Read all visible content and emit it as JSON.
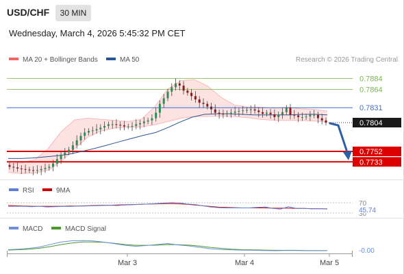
{
  "header": {
    "symbol": "USD/CHF",
    "timeframe": "30 MIN",
    "datetime": "Wednesday, March 4, 2026 5:45:32 PM CET"
  },
  "colors": {
    "bollinger": "#f06666",
    "bollinger_fill": "#fde2e2",
    "ma50": "#2b5597",
    "pivot_blue": "#3a6fcf",
    "support_red": "#dd0000",
    "resistance_green": "#7ab648",
    "candle_up": "#2e8b57",
    "candle_down": "#8b1a1a",
    "rsi": "#5b7fd6",
    "rsi_ma": "#cc0000",
    "macd": "#6a8fdc",
    "macd_signal": "#4a9a2a",
    "forecast_arrow": "#2b5fa8"
  },
  "legend": {
    "ma20_label": "MA 20 + Bollinger Bands",
    "ma50_label": "MA 50",
    "copyright": "Research © 2026 Trading Central"
  },
  "chart_data": [
    {
      "type": "candlestick",
      "ylim": [
        0.7716,
        0.7897
      ],
      "x": [
        "Mar 3",
        "Mar 4",
        "Mar 5"
      ],
      "resistance_levels": [
        0.7884,
        0.7864
      ],
      "pivot": 0.7831,
      "last_price": 0.7804,
      "support_levels": [
        0.7752,
        0.7733
      ],
      "price_labels": [
        "0.7884",
        "0.7864",
        "0.7831",
        "0.7804",
        "0.7752",
        "0.7733"
      ],
      "series": [
        {
          "name": "MA 20 + Bollinger Bands"
        },
        {
          "name": "MA 50"
        }
      ],
      "close_path": [
        0.7724,
        0.7723,
        0.7721,
        0.772,
        0.7719,
        0.7718,
        0.7717,
        0.7718,
        0.772,
        0.7722,
        0.7724,
        0.773,
        0.7738,
        0.7746,
        0.775,
        0.7755,
        0.7763,
        0.7772,
        0.778,
        0.7786,
        0.7789,
        0.779,
        0.7792,
        0.7795,
        0.7798,
        0.7801,
        0.7801,
        0.78,
        0.7799,
        0.7797,
        0.7797,
        0.7798,
        0.7801,
        0.7803,
        0.7806,
        0.7808,
        0.7812,
        0.7822,
        0.7838,
        0.7848,
        0.786,
        0.7868,
        0.7875,
        0.7871,
        0.7862,
        0.7858,
        0.7852,
        0.7846,
        0.784,
        0.7838,
        0.7833,
        0.7828,
        0.7822,
        0.782,
        0.7819,
        0.7821,
        0.7822,
        0.7824,
        0.7825,
        0.7826,
        0.7827,
        0.7828,
        0.7826,
        0.7823,
        0.782,
        0.7822,
        0.7819,
        0.7814,
        0.7818,
        0.7823,
        0.7831,
        0.7818,
        0.7817,
        0.7814,
        0.7814,
        0.7815,
        0.7818,
        0.7818,
        0.7812,
        0.7808,
        0.7804
      ],
      "ma50_path": [
        0.7739,
        0.7739,
        0.774,
        0.7742,
        0.7744,
        0.7747,
        0.7752,
        0.7757,
        0.7763,
        0.7769,
        0.7775,
        0.7781,
        0.7786,
        0.7795,
        0.7805,
        0.7814,
        0.7819,
        0.782,
        0.782,
        0.7819,
        0.7818,
        0.7818,
        0.7818,
        0.7818,
        0.7819,
        0.7819,
        0.7818
      ],
      "bollinger_upper": [
        0.7729,
        0.7731,
        0.7737,
        0.7757,
        0.7788,
        0.7809,
        0.7812,
        0.781,
        0.7808,
        0.7806,
        0.781,
        0.7832,
        0.7865,
        0.788,
        0.7882,
        0.787,
        0.785,
        0.7836,
        0.7832,
        0.7832,
        0.783,
        0.7832,
        0.7829,
        0.7828,
        0.7825
      ],
      "bollinger_lower": [
        0.7714,
        0.7712,
        0.7713,
        0.7718,
        0.7734,
        0.7757,
        0.7778,
        0.7789,
        0.7794,
        0.7796,
        0.7796,
        0.78,
        0.7806,
        0.7812,
        0.7815,
        0.7815,
        0.7816,
        0.7815,
        0.7813,
        0.781,
        0.7808,
        0.7808,
        0.7808,
        0.7807,
        0.7805
      ],
      "forecast": {
        "from": 0.7804,
        "to": 0.7752
      }
    },
    {
      "type": "line",
      "title": "RSI",
      "series": [
        {
          "name": "RSI"
        },
        {
          "name": "9MA"
        }
      ],
      "levels": [
        "70",
        "30"
      ],
      "current_value": "45.74",
      "rsi_path": [
        56,
        57,
        57,
        55,
        57,
        54,
        55,
        56,
        56,
        58,
        58,
        59,
        60,
        61,
        60,
        62,
        63,
        65,
        66,
        68,
        70,
        72,
        71,
        66,
        64,
        59,
        54,
        51,
        50,
        50,
        50,
        50,
        52,
        54,
        48,
        45,
        55,
        48,
        48,
        46,
        47,
        45
      ],
      "rsi_ma_path": [
        60,
        59,
        58,
        57,
        57,
        57,
        57,
        57,
        58,
        58,
        59,
        60,
        61,
        61,
        62,
        63,
        64,
        65,
        66,
        67,
        68,
        68,
        67,
        65,
        62,
        59,
        56,
        53,
        52,
        51,
        50,
        50,
        50,
        50,
        49,
        49,
        49,
        48,
        48,
        47,
        47,
        46
      ]
    },
    {
      "type": "line",
      "title": "MACD",
      "series": [
        {
          "name": "MACD"
        },
        {
          "name": "MACD Signal"
        }
      ],
      "current_value": "-0.00",
      "macd_path": [
        0.05,
        0.08,
        0.12,
        0.19,
        0.32,
        0.44,
        0.5,
        0.51,
        0.49,
        0.43,
        0.35,
        0.27,
        0.22,
        0.26,
        0.31,
        0.36,
        0.29,
        0.24,
        0.17,
        0.1,
        0.06,
        0.04,
        0.03,
        0.02,
        0.01,
        0.0,
        0.01,
        0.01,
        0.0,
        0.0,
        0.0
      ],
      "signal_path": [
        0.03,
        0.05,
        0.08,
        0.13,
        0.21,
        0.31,
        0.39,
        0.44,
        0.44,
        0.42,
        0.37,
        0.31,
        0.27,
        0.27,
        0.28,
        0.31,
        0.3,
        0.28,
        0.23,
        0.17,
        0.12,
        0.08,
        0.05,
        0.04,
        0.03,
        0.02,
        0.02,
        0.02,
        0.01,
        0.01,
        0.01
      ]
    }
  ]
}
